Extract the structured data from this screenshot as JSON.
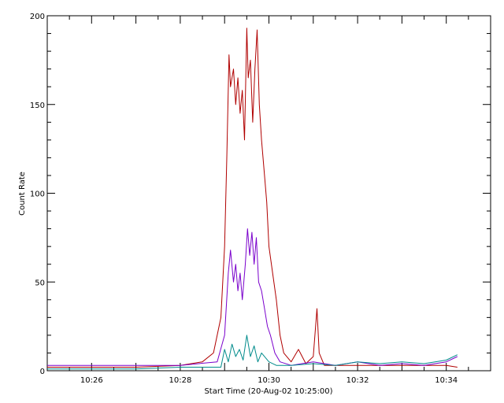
{
  "chart_data": {
    "type": "line",
    "xlabel": "Start Time (20-Aug-02 10:25:00)",
    "ylabel": "Count Rate",
    "x_unit": "time HH:MM",
    "xlim": [
      "10:25:00",
      "10:35:00"
    ],
    "ylim": [
      0,
      200
    ],
    "x_ticks": [
      "10:26",
      "10:28",
      "10:30",
      "10:32",
      "10:34"
    ],
    "y_ticks": [
      "0",
      "50",
      "100",
      "150",
      "200"
    ],
    "grid": false,
    "legend": "none",
    "series": [
      {
        "color": "#b00000",
        "points": [
          [
            "10:25:00",
            2
          ],
          [
            "10:26:00",
            2
          ],
          [
            "10:27:00",
            2
          ],
          [
            "10:28:00",
            3
          ],
          [
            "10:28:30",
            5
          ],
          [
            "10:28:45",
            10
          ],
          [
            "10:28:55",
            30
          ],
          [
            "10:29:00",
            70
          ],
          [
            "10:29:03",
            120
          ],
          [
            "10:29:06",
            178
          ],
          [
            "10:29:08",
            160
          ],
          [
            "10:29:12",
            170
          ],
          [
            "10:29:15",
            150
          ],
          [
            "10:29:18",
            165
          ],
          [
            "10:29:21",
            145
          ],
          [
            "10:29:24",
            158
          ],
          [
            "10:29:27",
            130
          ],
          [
            "10:29:30",
            193
          ],
          [
            "10:29:32",
            165
          ],
          [
            "10:29:35",
            175
          ],
          [
            "10:29:38",
            140
          ],
          [
            "10:29:41",
            170
          ],
          [
            "10:29:44",
            192
          ],
          [
            "10:29:47",
            150
          ],
          [
            "10:29:50",
            130
          ],
          [
            "10:29:54",
            110
          ],
          [
            "10:29:57",
            95
          ],
          [
            "10:30:00",
            70
          ],
          [
            "10:30:05",
            55
          ],
          [
            "10:30:10",
            40
          ],
          [
            "10:30:15",
            20
          ],
          [
            "10:30:20",
            10
          ],
          [
            "10:30:30",
            5
          ],
          [
            "10:30:40",
            12
          ],
          [
            "10:30:50",
            4
          ],
          [
            "10:31:00",
            8
          ],
          [
            "10:31:05",
            35
          ],
          [
            "10:31:08",
            10
          ],
          [
            "10:31:15",
            3
          ],
          [
            "10:32:00",
            3
          ],
          [
            "10:33:00",
            3
          ],
          [
            "10:34:00",
            3
          ],
          [
            "10:34:15",
            2
          ]
        ]
      },
      {
        "color": "#7a00cc",
        "points": [
          [
            "10:25:00",
            3
          ],
          [
            "10:26:00",
            3
          ],
          [
            "10:27:00",
            3
          ],
          [
            "10:28:00",
            3
          ],
          [
            "10:28:50",
            5
          ],
          [
            "10:29:00",
            20
          ],
          [
            "10:29:05",
            55
          ],
          [
            "10:29:08",
            68
          ],
          [
            "10:29:12",
            50
          ],
          [
            "10:29:15",
            60
          ],
          [
            "10:29:18",
            45
          ],
          [
            "10:29:21",
            55
          ],
          [
            "10:29:24",
            40
          ],
          [
            "10:29:28",
            60
          ],
          [
            "10:29:31",
            80
          ],
          [
            "10:29:34",
            65
          ],
          [
            "10:29:37",
            78
          ],
          [
            "10:29:40",
            60
          ],
          [
            "10:29:43",
            75
          ],
          [
            "10:29:46",
            50
          ],
          [
            "10:29:50",
            45
          ],
          [
            "10:29:54",
            35
          ],
          [
            "10:29:58",
            25
          ],
          [
            "10:30:02",
            20
          ],
          [
            "10:30:08",
            10
          ],
          [
            "10:30:15",
            5
          ],
          [
            "10:30:30",
            3
          ],
          [
            "10:31:00",
            5
          ],
          [
            "10:31:30",
            3
          ],
          [
            "10:32:00",
            5
          ],
          [
            "10:32:30",
            3
          ],
          [
            "10:33:00",
            4
          ],
          [
            "10:33:30",
            3
          ],
          [
            "10:34:00",
            5
          ],
          [
            "10:34:15",
            8
          ]
        ]
      },
      {
        "color": "#008b8b",
        "points": [
          [
            "10:25:00",
            1
          ],
          [
            "10:26:00",
            1
          ],
          [
            "10:27:00",
            1
          ],
          [
            "10:28:00",
            2
          ],
          [
            "10:28:55",
            2
          ],
          [
            "10:29:00",
            12
          ],
          [
            "10:29:05",
            5
          ],
          [
            "10:29:10",
            15
          ],
          [
            "10:29:15",
            8
          ],
          [
            "10:29:20",
            12
          ],
          [
            "10:29:25",
            6
          ],
          [
            "10:29:30",
            20
          ],
          [
            "10:29:35",
            8
          ],
          [
            "10:29:40",
            14
          ],
          [
            "10:29:45",
            5
          ],
          [
            "10:29:50",
            10
          ],
          [
            "10:30:00",
            5
          ],
          [
            "10:30:10",
            3
          ],
          [
            "10:30:30",
            3
          ],
          [
            "10:31:00",
            4
          ],
          [
            "10:31:30",
            3
          ],
          [
            "10:32:00",
            5
          ],
          [
            "10:32:30",
            4
          ],
          [
            "10:33:00",
            5
          ],
          [
            "10:33:30",
            4
          ],
          [
            "10:34:00",
            6
          ],
          [
            "10:34:15",
            9
          ]
        ]
      }
    ]
  }
}
